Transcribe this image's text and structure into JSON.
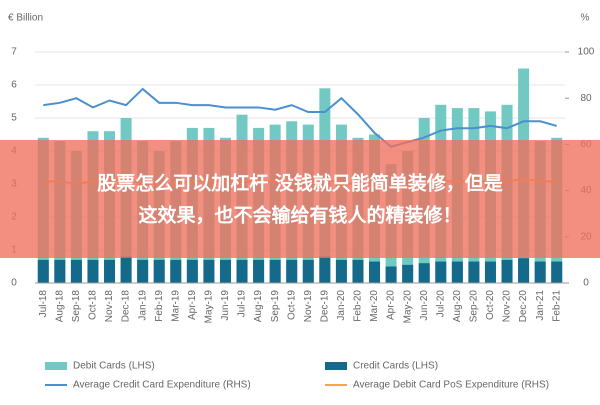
{
  "chart_data": {
    "type": "bar",
    "y_label": "€ Billion",
    "y2_label": "%",
    "categories": [
      "Jul-18",
      "Aug-18",
      "Sep-18",
      "Oct-18",
      "Nov-18",
      "Dec-18",
      "Jan-19",
      "Feb-19",
      "Mar-19",
      "Apr-19",
      "May-19",
      "Jun-19",
      "Jul-19",
      "Aug-19",
      "Sep-19",
      "Oct-19",
      "Nov-19",
      "Dec-19",
      "Jan-20",
      "Feb-20",
      "Mar-20",
      "Apr-20",
      "May-20",
      "Jun-20",
      "Jul-20",
      "Aug-20",
      "Sep-20",
      "Oct-20",
      "Nov-20",
      "Dec-20",
      "Jan-21",
      "Feb-21"
    ],
    "series": [
      {
        "name": "Debit Cards (LHS)",
        "type": "bar",
        "color": "#72c9c3",
        "values": [
          4.4,
          4.3,
          4.0,
          4.6,
          4.6,
          5.0,
          4.3,
          4.0,
          4.3,
          4.7,
          4.7,
          4.4,
          5.1,
          4.7,
          4.8,
          4.9,
          4.8,
          5.9,
          4.8,
          4.4,
          4.5,
          3.6,
          4.0,
          5.0,
          5.4,
          5.3,
          5.3,
          5.2,
          5.4,
          6.5,
          4.3,
          4.4
        ]
      },
      {
        "name": "Credit Cards (LHS)",
        "type": "bar",
        "color": "#15698a",
        "values": [
          0.7,
          0.7,
          0.7,
          0.7,
          0.7,
          0.8,
          0.7,
          0.7,
          0.7,
          0.7,
          0.7,
          0.7,
          0.7,
          0.7,
          0.7,
          0.7,
          0.7,
          0.8,
          0.7,
          0.7,
          0.65,
          0.5,
          0.55,
          0.6,
          0.65,
          0.65,
          0.65,
          0.65,
          0.7,
          0.75,
          0.65,
          0.65
        ]
      },
      {
        "name": "Average Credit Card Expenditure (RHS)",
        "type": "line",
        "axis": "y2",
        "color": "#4a90d0",
        "values": [
          77,
          78,
          80,
          76,
          79,
          77,
          84,
          78,
          78,
          77,
          77,
          76,
          76,
          76,
          75,
          77,
          74,
          74,
          80,
          73,
          65,
          59,
          61,
          63,
          66,
          67,
          67,
          68,
          67,
          70,
          70,
          68
        ]
      },
      {
        "name": "Average Debit Card PoS Expenditure (RHS)",
        "type": "line",
        "axis": "y2",
        "color": "#f0a848",
        "values": [
          44,
          44,
          43,
          44,
          44,
          45,
          43,
          43,
          43,
          44,
          44,
          44,
          44,
          44,
          44,
          44,
          44,
          45,
          43,
          43,
          42,
          41,
          42,
          43,
          44,
          44,
          44,
          44,
          44,
          45,
          44,
          44
        ]
      }
    ],
    "ylim": [
      0,
      7
    ],
    "yticks": [
      0,
      1,
      2,
      3,
      4,
      5,
      6,
      7
    ],
    "y2lim": [
      0,
      100
    ],
    "y2ticks": [
      0,
      20,
      40,
      60,
      80,
      100
    ]
  },
  "overlay": {
    "lines": [
      "股票怎么可以加杠杆 没钱就只能简单装修，但是",
      "这效果，也不会输给有钱人的精装修！"
    ]
  }
}
